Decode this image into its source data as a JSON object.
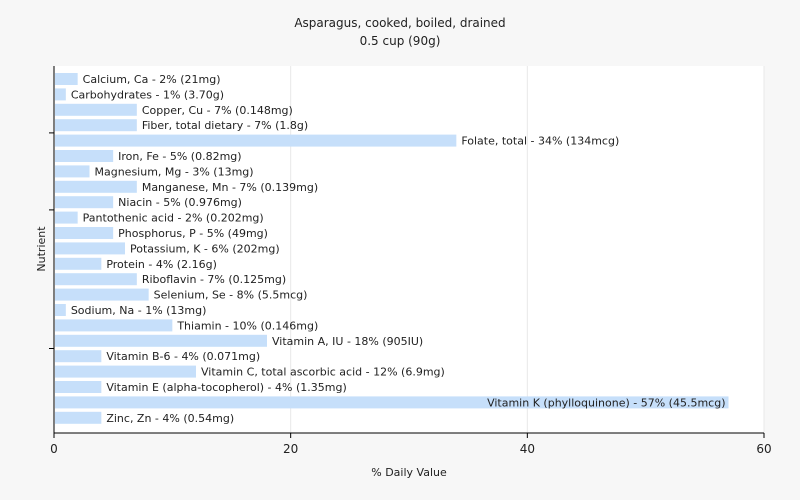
{
  "chart_data": {
    "type": "bar",
    "orientation": "horizontal",
    "title": "Asparagus, cooked, boiled, drained",
    "subtitle": "0.5 cup (90g)",
    "xlabel": "% Daily Value",
    "ylabel": "Nutrient",
    "xlim": [
      0,
      60
    ],
    "xticks": [
      0,
      20,
      40,
      60
    ],
    "grid": true,
    "legend": "none",
    "bar_color": "#c6dffa",
    "categories": [
      "Calcium, Ca",
      "Carbohydrates",
      "Copper, Cu",
      "Fiber, total dietary",
      "Folate, total",
      "Iron, Fe",
      "Magnesium, Mg",
      "Manganese, Mn",
      "Niacin",
      "Pantothenic acid",
      "Phosphorus, P",
      "Potassium, K",
      "Protein",
      "Riboflavin",
      "Selenium, Se",
      "Sodium, Na",
      "Thiamin",
      "Vitamin A, IU",
      "Vitamin B-6",
      "Vitamin C, total ascorbic acid",
      "Vitamin E (alpha-tocopherol)",
      "Vitamin K (phylloquinone)",
      "Zinc, Zn"
    ],
    "values": [
      2,
      1,
      7,
      7,
      34,
      5,
      3,
      7,
      5,
      2,
      5,
      6,
      4,
      7,
      8,
      1,
      10,
      18,
      4,
      12,
      4,
      57,
      4
    ],
    "labels": [
      "Calcium, Ca - 2% (21mg)",
      "Carbohydrates - 1% (3.70g)",
      "Copper, Cu - 7% (0.148mg)",
      "Fiber, total dietary - 7% (1.8g)",
      "Folate, total - 34% (134mcg)",
      "Iron, Fe - 5% (0.82mg)",
      "Magnesium, Mg - 3% (13mg)",
      "Manganese, Mn - 7% (0.139mg)",
      "Niacin - 5% (0.976mg)",
      "Pantothenic acid - 2% (0.202mg)",
      "Phosphorus, P - 5% (49mg)",
      "Potassium, K - 6% (202mg)",
      "Protein - 4% (2.16g)",
      "Riboflavin - 7% (0.125mg)",
      "Selenium, Se - 8% (5.5mcg)",
      "Sodium, Na - 1% (13mg)",
      "Thiamin - 10% (0.146mg)",
      "Vitamin A, IU - 18% (905IU)",
      "Vitamin B-6 - 4% (0.071mg)",
      "Vitamin C, total ascorbic acid - 12% (6.9mg)",
      "Vitamin E (alpha-tocopherol) - 4% (1.35mg)",
      "Vitamin K (phylloquinone) - 57% (45.5mcg)",
      "Zinc, Zn - 4% (0.54mg)"
    ]
  }
}
